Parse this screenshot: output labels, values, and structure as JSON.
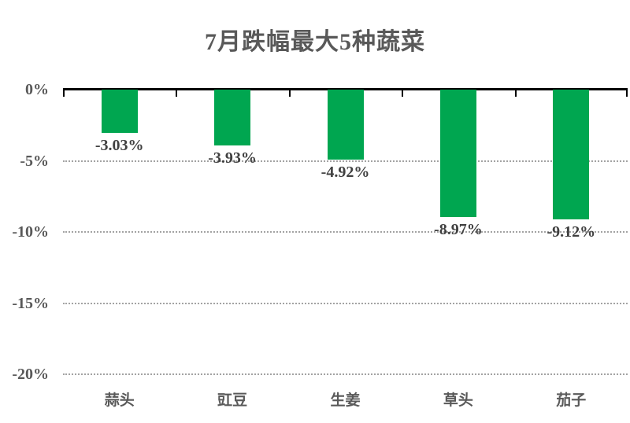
{
  "chart_data": {
    "type": "bar",
    "title": "7月跌幅最大5种蔬菜",
    "categories": [
      "蒜头",
      "豇豆",
      "生姜",
      "草头",
      "茄子"
    ],
    "values": [
      -3.03,
      -3.93,
      -4.92,
      -8.97,
      -9.12
    ],
    "data_labels": [
      "-3.03%",
      "-3.93%",
      "-4.92%",
      "-8.97%",
      "-9.12%"
    ],
    "xlabel": "",
    "ylabel": "",
    "ylim": [
      -20,
      0
    ],
    "y_ticks": [
      {
        "value": 0,
        "label": "0%"
      },
      {
        "value": -5,
        "label": "-5%"
      },
      {
        "value": -10,
        "label": "-10%"
      },
      {
        "value": -15,
        "label": "-15%"
      },
      {
        "value": -20,
        "label": "-20%"
      }
    ],
    "grid": "horizontal-dotted",
    "legend_position": "none",
    "bar_color": "#00a650",
    "axis_color": "#000000",
    "gridline_color": "#a3a3a3",
    "title_color": "#595959",
    "label_color": "#404040",
    "background_color": "#ffffff"
  }
}
